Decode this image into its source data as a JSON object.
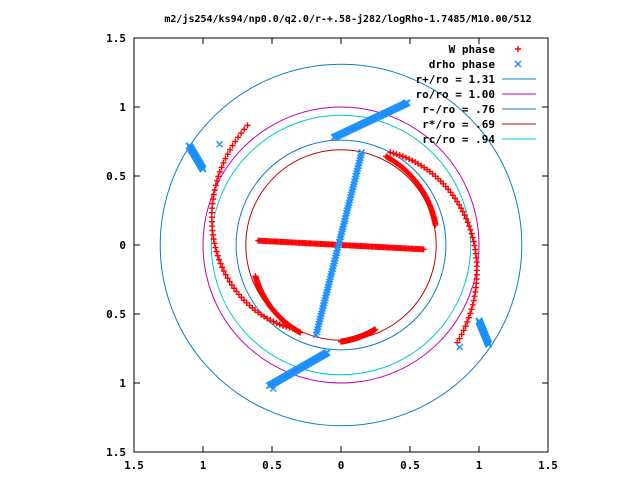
{
  "chart_data": {
    "type": "scatter",
    "title": "m2/js254/ks94/np0.0/q2.0/r-+.58-j282/logRho-1.7485/M10.00/512",
    "xlabel": "",
    "ylabel": "",
    "xlim": [
      -1.5,
      1.5
    ],
    "ylim": [
      -1.5,
      1.5
    ],
    "x_ticks": [
      {
        "value": -1.5,
        "label": "1.5"
      },
      {
        "value": -1.0,
        "label": "1"
      },
      {
        "value": -0.5,
        "label": "0.5"
      },
      {
        "value": 0.0,
        "label": "0"
      },
      {
        "value": 0.5,
        "label": "0.5"
      },
      {
        "value": 1.0,
        "label": "1"
      },
      {
        "value": 1.5,
        "label": "1.5"
      }
    ],
    "y_ticks": [
      {
        "value": 1.5,
        "label": "1.5"
      },
      {
        "value": 1.0,
        "label": "1"
      },
      {
        "value": 0.5,
        "label": "0.5"
      },
      {
        "value": 0.0,
        "label": "0"
      },
      {
        "value": -0.5,
        "label": "0.5"
      },
      {
        "value": -1.0,
        "label": "1"
      },
      {
        "value": -1.5,
        "label": "1.5"
      }
    ],
    "grid": false,
    "legend_position": "top-right",
    "colors": {
      "w_phase": "#ff0000",
      "drho_phase": "#1e90ff",
      "r_plus": "#0b7fc4",
      "r_o": "#bf00bf",
      "r_minus": "#0b7fc4",
      "r_star": "#c00000",
      "r_c": "#00cccc"
    },
    "circles": [
      {
        "name": "r+/ro = 1.31",
        "radius": 1.31,
        "color_key": "r_plus"
      },
      {
        "name": "ro/ro = 1.00",
        "radius": 1.0,
        "color_key": "r_o"
      },
      {
        "name": "r-/ro = .76",
        "radius": 0.76,
        "color_key": "r_minus"
      },
      {
        "name": "r*/ro = .69",
        "radius": 0.69,
        "color_key": "r_star"
      },
      {
        "name": "rc/ro = .94",
        "radius": 0.94,
        "color_key": "r_c"
      }
    ],
    "series": [
      {
        "name": "W phase",
        "marker": "plus",
        "color_key": "w_phase",
        "segments": [
          {
            "r": [
              1.1,
              0.76
            ],
            "theta_deg": [
              -40,
              62
            ]
          },
          {
            "r": [
              1.1,
              0.7
            ],
            "theta_deg": [
              128,
              240
            ]
          },
          {
            "r": [
              0.72,
              0.7
            ],
            "theta_deg": [
              63,
              12
            ]
          },
          {
            "r": [
              0.7,
              0.66
            ],
            "theta_deg": [
              245,
              200
            ]
          },
          {
            "r": [
              0.6,
              0.01
            ],
            "theta_deg": [
              -3,
              -3
            ]
          },
          {
            "r": [
              0.6,
              0.01
            ],
            "theta_deg": [
              177,
              177
            ]
          },
          {
            "r": [
              0.7,
              0.66
            ],
            "theta_deg": [
              270,
              292
            ]
          }
        ]
      },
      {
        "name": "drho phase",
        "marker": "x",
        "color_key": "drho_phase",
        "segments": [
          {
            "x": [
              -0.18,
              0.15
            ],
            "y": [
              -0.65,
              0.67
            ]
          },
          {
            "x": [
              -0.05,
              0.48
            ],
            "y": [
              0.78,
              1.03
            ]
          },
          {
            "x": [
              -0.52,
              -0.1
            ],
            "y": [
              -1.02,
              -0.78
            ]
          },
          {
            "x": [
              -1.1,
              -1.0
            ],
            "y": [
              0.72,
              0.55
            ]
          },
          {
            "x": [
              1.0,
              1.07
            ],
            "y": [
              -0.55,
              -0.72
            ]
          }
        ],
        "isolated_points": [
          {
            "x": -0.88,
            "y": 0.73
          },
          {
            "x": 0.47,
            "y": 1.03
          },
          {
            "x": 0.86,
            "y": -0.74
          },
          {
            "x": -0.49,
            "y": -1.04
          }
        ]
      }
    ]
  },
  "legend": {
    "entries": [
      {
        "label": "W phase",
        "kind": "plus"
      },
      {
        "label": "drho phase",
        "kind": "x"
      },
      {
        "label": "r+/ro = 1.31",
        "kind": "line"
      },
      {
        "label": "ro/ro = 1.00",
        "kind": "line"
      },
      {
        "label": "r-/ro = .76",
        "kind": "line"
      },
      {
        "label": "r*/ro = .69",
        "kind": "line"
      },
      {
        "label": "rc/ro = .94",
        "kind": "line"
      }
    ]
  }
}
